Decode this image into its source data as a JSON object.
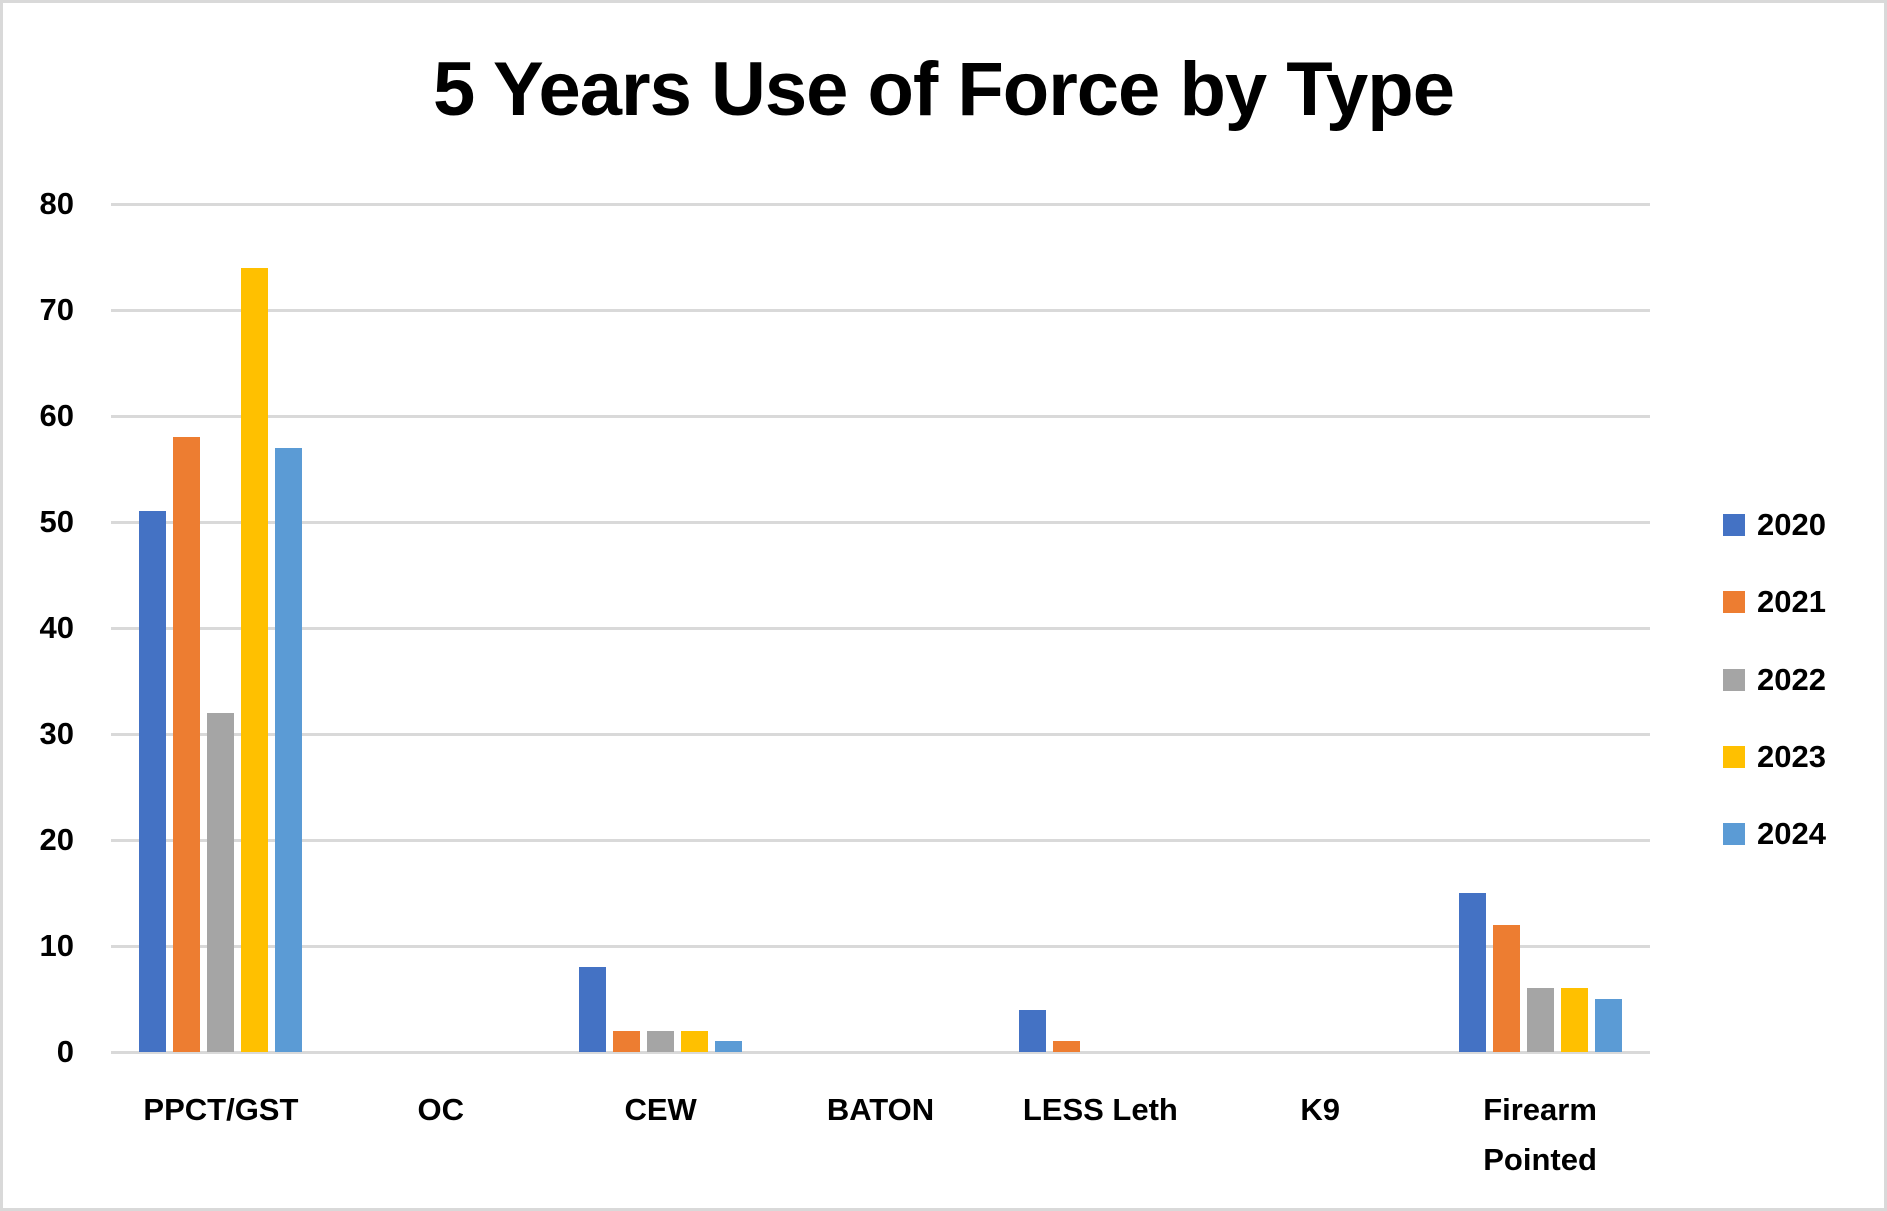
{
  "chart_data": {
    "type": "bar",
    "title": "5 Years Use of Force by Type",
    "xlabel": "",
    "ylabel": "",
    "ylim": [
      0,
      80
    ],
    "yticks": [
      0,
      10,
      20,
      30,
      40,
      50,
      60,
      70,
      80
    ],
    "grid": true,
    "legend_position": "right",
    "categories": [
      "PPCT/GST",
      "OC",
      "CEW",
      "BATON",
      "LESS Leth",
      "K9",
      "Firearm Pointed"
    ],
    "category_label_lines": [
      [
        "PPCT/GST"
      ],
      [
        "OC"
      ],
      [
        "CEW"
      ],
      [
        "BATON"
      ],
      [
        "LESS Leth"
      ],
      [
        "K9"
      ],
      [
        "Firearm",
        "Pointed"
      ]
    ],
    "series": [
      {
        "name": "2020",
        "color": "#4472C4",
        "values": [
          51,
          0,
          8,
          0,
          4,
          0,
          15
        ]
      },
      {
        "name": "2021",
        "color": "#ED7D31",
        "values": [
          58,
          0,
          2,
          0,
          1,
          0,
          12
        ]
      },
      {
        "name": "2022",
        "color": "#A5A5A5",
        "values": [
          32,
          0,
          2,
          0,
          0,
          0,
          6
        ]
      },
      {
        "name": "2023",
        "color": "#FFC000",
        "values": [
          74,
          0,
          2,
          0,
          0,
          0,
          6
        ]
      },
      {
        "name": "2024",
        "color": "#5B9BD5",
        "values": [
          57,
          0,
          1,
          0,
          0,
          0,
          5
        ]
      }
    ]
  },
  "colors": {
    "gridline": "#d9d9d9",
    "border": "#d9d9d9",
    "text": "#000000"
  }
}
